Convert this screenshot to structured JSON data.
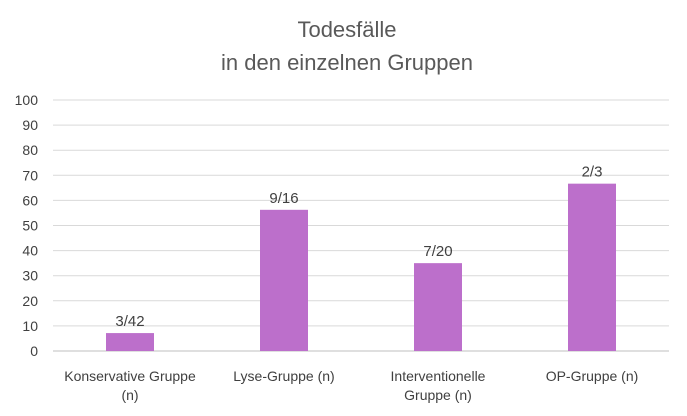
{
  "chart_data": {
    "type": "bar",
    "title_lines": [
      "Todesfälle",
      "in den einzelnen Gruppen"
    ],
    "categories": [
      [
        "Konservative Gruppe",
        "(n)"
      ],
      [
        "Lyse-Gruppe (n)"
      ],
      [
        "Interventionelle",
        "Gruppe (n)"
      ],
      [
        "OP-Gruppe (n)"
      ]
    ],
    "values": [
      7.14,
      56.25,
      35,
      66.67
    ],
    "data_labels": [
      "3/42",
      "9/16",
      "7/20",
      "2/3"
    ],
    "ylim": [
      0,
      100
    ],
    "yticks": [
      0,
      10,
      20,
      30,
      40,
      50,
      60,
      70,
      80,
      90,
      100
    ],
    "grid": true,
    "bar_color": "#bc6fcb"
  }
}
